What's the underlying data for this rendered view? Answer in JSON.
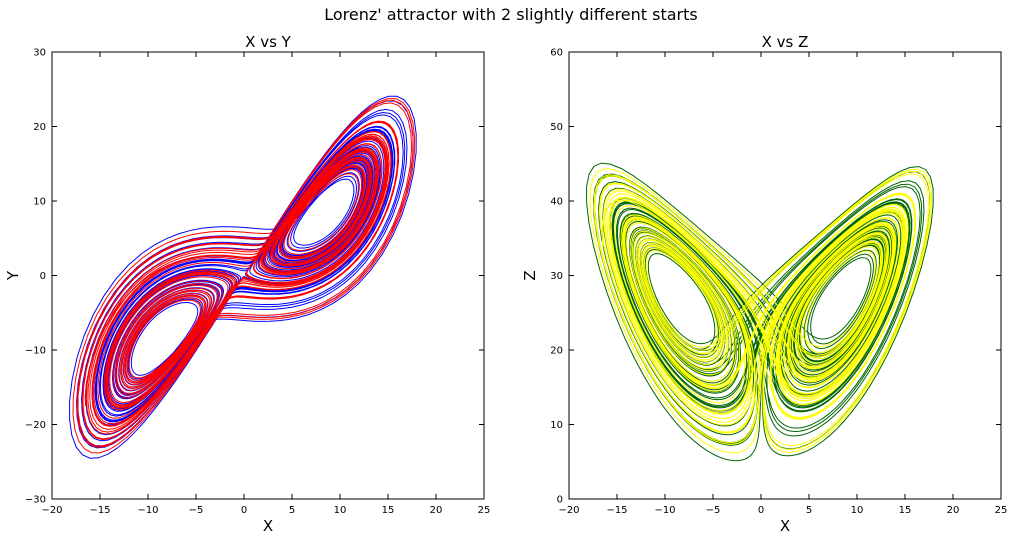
{
  "figure": {
    "suptitle": "Lorenz' attractor with 2 slightly different starts"
  },
  "chart_data": [
    {
      "type": "line",
      "title": "X vs Y",
      "xlabel": "X",
      "ylabel": "Y",
      "xlim": [
        -20,
        25
      ],
      "ylim": [
        -30,
        30
      ],
      "xticks": [
        -20,
        -15,
        -10,
        -5,
        0,
        5,
        10,
        15,
        20,
        25
      ],
      "yticks": [
        -30,
        -20,
        -10,
        0,
        10,
        20,
        30
      ],
      "grid": false,
      "series": [
        {
          "color": "#0000ff",
          "values": "Lorenz trajectory, start 1 (x vs y)"
        },
        {
          "color": "#ff0000",
          "values": "Lorenz trajectory, start 2 (x vs y)"
        }
      ]
    },
    {
      "type": "line",
      "title": "X vs Z",
      "xlabel": "X",
      "ylabel": "Z",
      "xlim": [
        -20,
        25
      ],
      "ylim": [
        0,
        60
      ],
      "xticks": [
        -20,
        -15,
        -10,
        -5,
        0,
        5,
        10,
        15,
        20,
        25
      ],
      "yticks": [
        0,
        10,
        20,
        30,
        40,
        50,
        60
      ],
      "grid": false,
      "series": [
        {
          "color": "#006400",
          "values": "Lorenz trajectory, start 1 (x vs z)"
        },
        {
          "color": "#ffff00",
          "values": "Lorenz trajectory, start 2 (x vs z)"
        }
      ]
    }
  ]
}
